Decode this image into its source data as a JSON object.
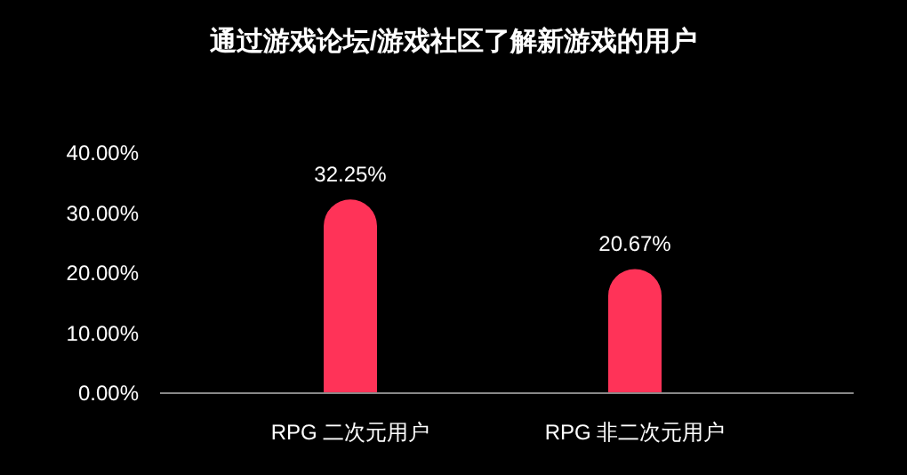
{
  "chart_data": {
    "type": "bar",
    "title": "通过游戏论坛/游戏社区了解新游戏的用户",
    "categories": [
      "RPG 二次元用户",
      "RPG 非二次元用户"
    ],
    "values": [
      32.25,
      20.67
    ],
    "color": "#ff3358",
    "value_labels": [
      "32.25%",
      "20.67%"
    ],
    "ylim": [
      0,
      40
    ],
    "yticks": [
      {
        "value": 0,
        "label": "0.00%"
      },
      {
        "value": 10,
        "label": "10.00%"
      },
      {
        "value": 20,
        "label": "20.00%"
      },
      {
        "value": 30,
        "label": "30.00%"
      },
      {
        "value": 40,
        "label": "40.00%"
      }
    ],
    "grid": false
  }
}
